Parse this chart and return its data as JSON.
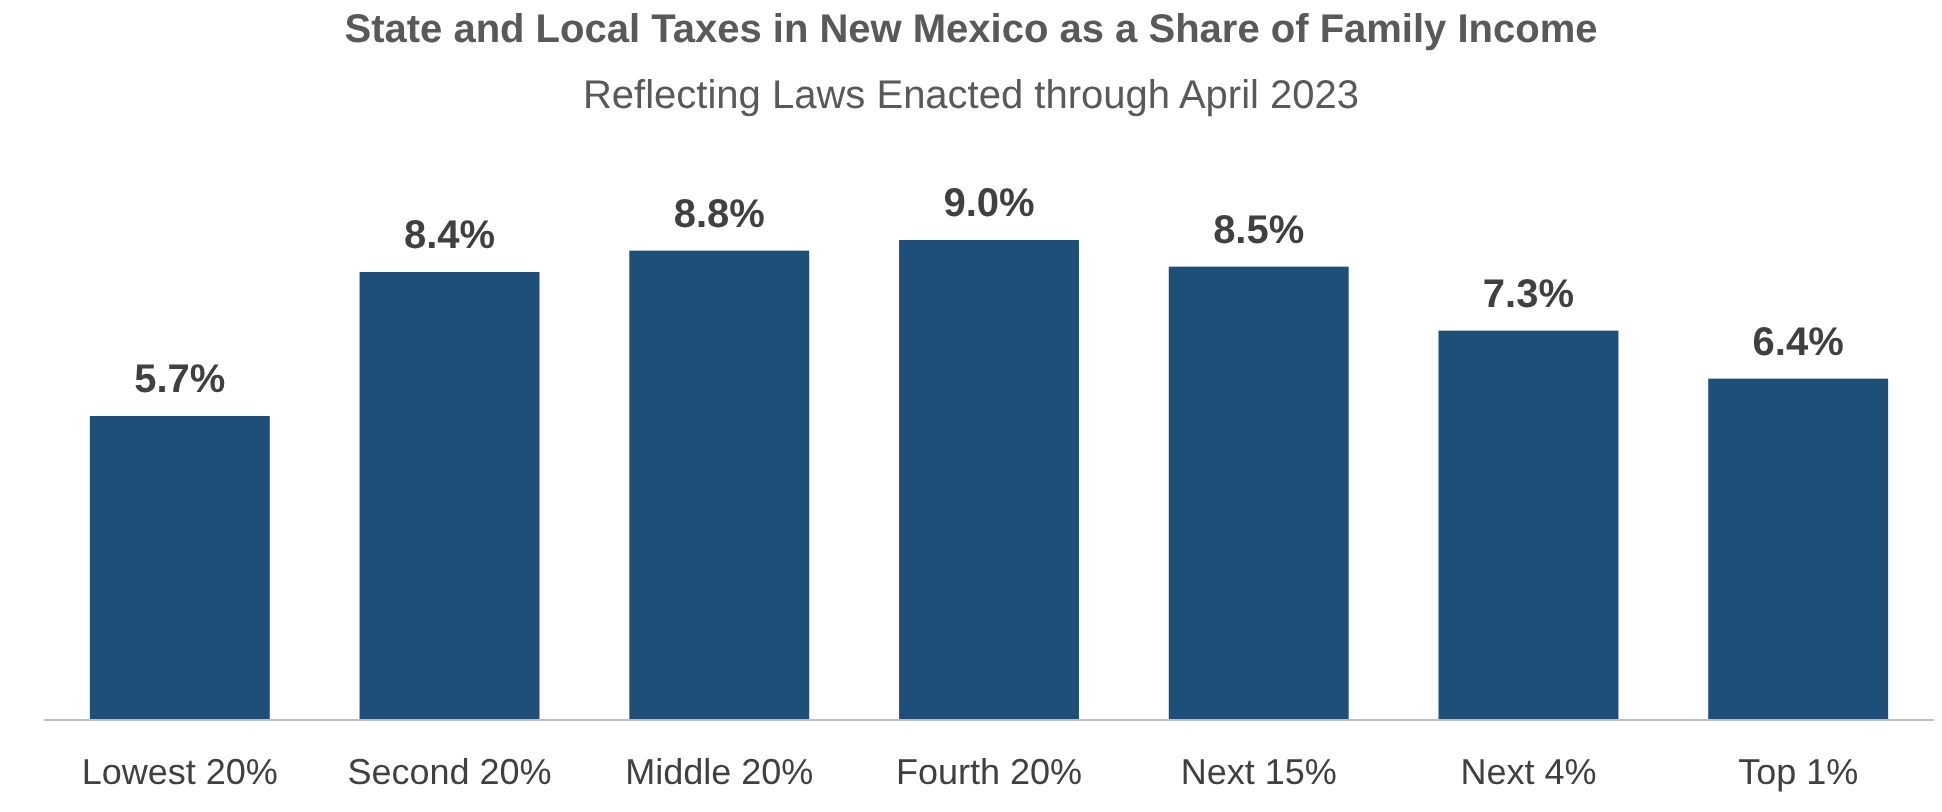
{
  "chart_data": {
    "type": "bar",
    "title": "State and Local Taxes in New Mexico as a Share of Family Income",
    "subtitle": "Reflecting Laws Enacted through April 2023",
    "categories": [
      "Lowest 20%",
      "Second 20%",
      "Middle 20%",
      "Fourth 20%",
      "Next 15%",
      "Next 4%",
      "Top 1%"
    ],
    "values": [
      5.7,
      8.4,
      8.8,
      9.0,
      8.5,
      7.3,
      6.4
    ],
    "value_labels": [
      "5.7%",
      "8.4%",
      "8.8%",
      "9.0%",
      "8.5%",
      "7.3%",
      "6.4%"
    ],
    "color": "#1f4e79"
  }
}
